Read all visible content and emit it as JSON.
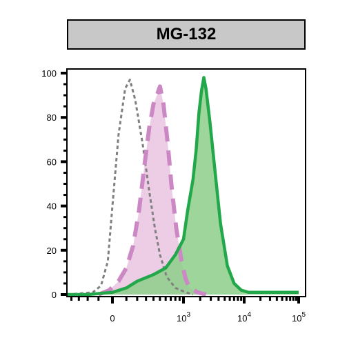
{
  "chart_data": {
    "type": "area",
    "title": "MG-132",
    "xlabel": "",
    "ylabel": "",
    "x_scale": "biexponential",
    "ylim": [
      0,
      100
    ],
    "yticks": [
      0,
      20,
      40,
      60,
      80,
      100
    ],
    "xticks": [
      {
        "value": 0,
        "base": "0",
        "exp": ""
      },
      {
        "value": 1000,
        "base": "10",
        "exp": "3"
      },
      {
        "value": 10000,
        "base": "10",
        "exp": "4"
      },
      {
        "value": 100000,
        "base": "10",
        "exp": "5"
      }
    ],
    "grid": false,
    "legend": "none",
    "series": [
      {
        "style": "dashed-gray",
        "stroke": "#808080",
        "fill": "none",
        "points": [
          [
            -500,
            0
          ],
          [
            -150,
            1
          ],
          [
            -80,
            4
          ],
          [
            -30,
            15
          ],
          [
            0,
            40
          ],
          [
            40,
            72
          ],
          [
            90,
            93
          ],
          [
            130,
            97
          ],
          [
            180,
            88
          ],
          [
            260,
            68
          ],
          [
            340,
            47
          ],
          [
            420,
            30
          ],
          [
            500,
            18
          ],
          [
            620,
            8
          ],
          [
            800,
            3
          ],
          [
            1100,
            1
          ],
          [
            1500,
            0
          ]
        ]
      },
      {
        "style": "dashed-pink",
        "stroke": "#cc88c4",
        "fill": "#edcde6",
        "points": [
          [
            -100,
            0
          ],
          [
            -20,
            2
          ],
          [
            40,
            6
          ],
          [
            100,
            12
          ],
          [
            160,
            22
          ],
          [
            220,
            38
          ],
          [
            280,
            58
          ],
          [
            340,
            75
          ],
          [
            400,
            86
          ],
          [
            450,
            90
          ],
          [
            500,
            94
          ],
          [
            560,
            86
          ],
          [
            640,
            68
          ],
          [
            720,
            48
          ],
          [
            820,
            30
          ],
          [
            950,
            15
          ],
          [
            1100,
            7
          ],
          [
            1300,
            3
          ],
          [
            1800,
            1
          ],
          [
            2500,
            0
          ]
        ]
      },
      {
        "style": "solid-green",
        "stroke": "#22a84a",
        "fill": "#8fcf8c",
        "points": [
          [
            -600,
            0
          ],
          [
            -200,
            0
          ],
          [
            0,
            1
          ],
          [
            100,
            3
          ],
          [
            200,
            6
          ],
          [
            400,
            9
          ],
          [
            600,
            12
          ],
          [
            800,
            18
          ],
          [
            1000,
            25
          ],
          [
            1200,
            38
          ],
          [
            1500,
            52
          ],
          [
            1700,
            65
          ],
          [
            1900,
            82
          ],
          [
            2100,
            92
          ],
          [
            2300,
            98
          ],
          [
            2500,
            93
          ],
          [
            2900,
            78
          ],
          [
            3500,
            56
          ],
          [
            4300,
            32
          ],
          [
            5500,
            13
          ],
          [
            7000,
            5
          ],
          [
            9000,
            2
          ],
          [
            12000,
            1
          ],
          [
            20000,
            1
          ],
          [
            50000,
            1
          ],
          [
            100000,
            1
          ]
        ]
      }
    ]
  }
}
